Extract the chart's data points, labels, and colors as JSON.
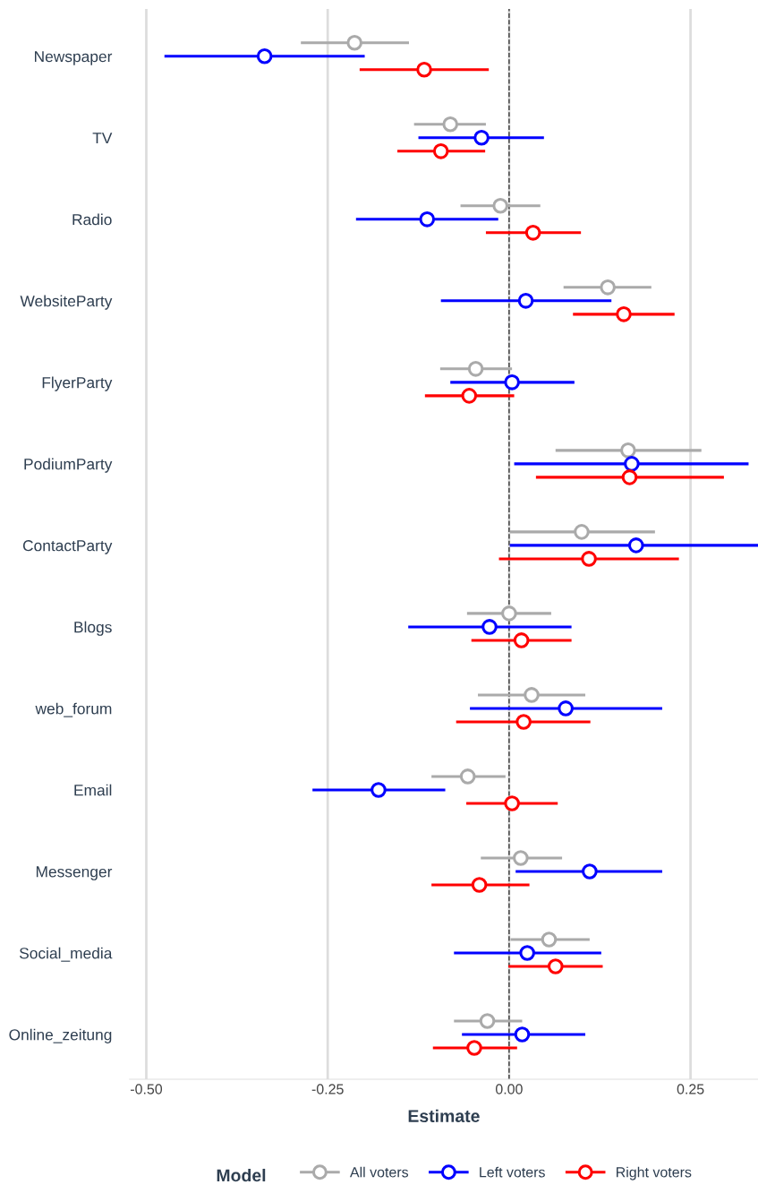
{
  "chart_data": {
    "type": "scatter",
    "orientation": "horizontal",
    "xlabel": "Estimate",
    "legend_title": "Model",
    "legend": "bottom",
    "grid": "x",
    "marker": "circle",
    "categories": [
      "Newspaper",
      "TV",
      "Radio",
      "WebsiteParty",
      "FlyerParty",
      "PodiumParty",
      "ContactParty",
      "Blogs",
      "web_forum",
      "Email",
      "Messenger",
      "Social_media",
      "Online_zeitung"
    ],
    "xlim": [
      -0.523,
      0.343
    ],
    "xticks": [
      {
        "value": -0.5,
        "label": "-0.50"
      },
      {
        "value": -0.25,
        "label": "-0.25"
      },
      {
        "value": 0,
        "label": "0.00"
      },
      {
        "value": 0.25,
        "label": "0.25"
      }
    ],
    "ref_lines": [
      {
        "axis": "x",
        "value": 0,
        "label": null,
        "color": "#333333",
        "line_style": "dashed"
      }
    ],
    "series": [
      {
        "name": "All voters",
        "color": "#aaaaaa",
        "values": [
          -0.213,
          -0.081,
          -0.012,
          0.136,
          -0.046,
          0.164,
          0.1,
          0.0,
          0.031,
          -0.057,
          0.016,
          0.055,
          -0.03
        ],
        "errors": [
          [
            -0.287,
            -0.138
          ],
          [
            -0.131,
            -0.032
          ],
          [
            -0.067,
            0.043
          ],
          [
            0.075,
            0.196
          ],
          [
            -0.095,
            0.004
          ],
          [
            0.064,
            0.265
          ],
          [
            0.001,
            0.201
          ],
          [
            -0.058,
            0.058
          ],
          [
            -0.043,
            0.105
          ],
          [
            -0.107,
            -0.005
          ],
          [
            -0.039,
            0.073
          ],
          [
            0.002,
            0.111
          ],
          [
            -0.076,
            0.018
          ]
        ]
      },
      {
        "name": "Left voters",
        "color": "#0000ff",
        "values": [
          -0.337,
          -0.038,
          -0.113,
          0.023,
          0.004,
          0.169,
          0.175,
          -0.027,
          0.078,
          -0.18,
          0.111,
          0.025,
          0.018
        ],
        "errors": [
          [
            -0.475,
            -0.199
          ],
          [
            -0.125,
            0.048
          ],
          [
            -0.211,
            -0.015
          ],
          [
            -0.094,
            0.141
          ],
          [
            -0.081,
            0.09
          ],
          [
            0.007,
            0.33
          ],
          [
            0.001,
            0.343
          ],
          [
            -0.139,
            0.086
          ],
          [
            -0.054,
            0.211
          ],
          [
            -0.271,
            -0.088
          ],
          [
            0.009,
            0.211
          ],
          [
            -0.076,
            0.127
          ],
          [
            -0.065,
            0.105
          ]
        ]
      },
      {
        "name": "Right voters",
        "color": "#ff0000",
        "values": [
          -0.117,
          -0.094,
          0.033,
          0.158,
          -0.055,
          0.166,
          0.11,
          0.017,
          0.02,
          0.004,
          -0.041,
          0.064,
          -0.048
        ],
        "errors": [
          [
            -0.206,
            -0.028
          ],
          [
            -0.154,
            -0.033
          ],
          [
            -0.032,
            0.099
          ],
          [
            0.088,
            0.228
          ],
          [
            -0.116,
            0.007
          ],
          [
            0.037,
            0.296
          ],
          [
            -0.014,
            0.234
          ],
          [
            -0.052,
            0.086
          ],
          [
            -0.073,
            0.112
          ],
          [
            -0.059,
            0.067
          ],
          [
            -0.107,
            0.028
          ],
          [
            -0.001,
            0.129
          ],
          [
            -0.105,
            0.011
          ]
        ]
      }
    ]
  }
}
